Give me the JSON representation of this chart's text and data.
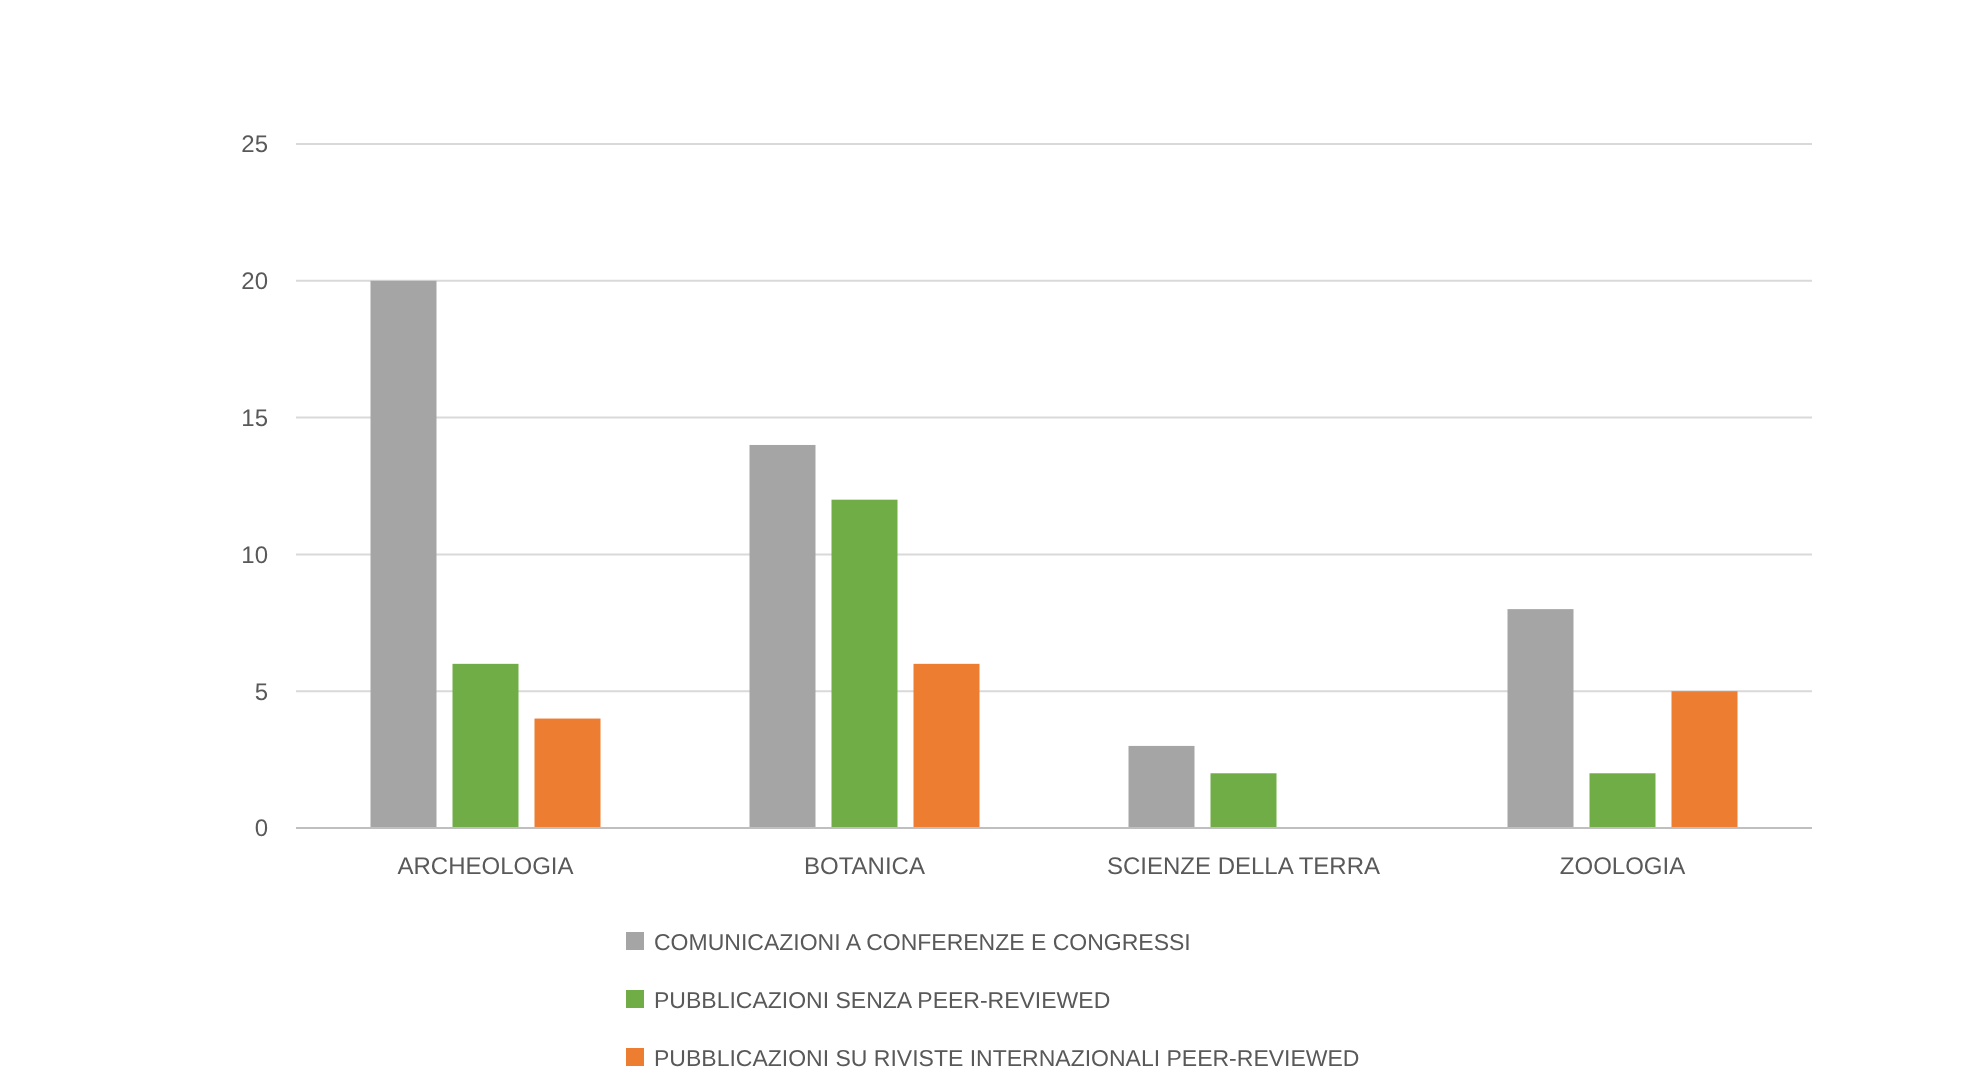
{
  "chart_data": {
    "type": "bar",
    "categories": [
      "ARCHEOLOGIA",
      "BOTANICA",
      "SCIENZE DELLA TERRA",
      "ZOOLOGIA"
    ],
    "series": [
      {
        "name": "COMUNICAZIONI A CONFERENZE E CONGRESSI",
        "color": "#a5a5a5",
        "values": [
          20,
          14,
          3,
          8
        ]
      },
      {
        "name": "PUBBLICAZIONI SENZA PEER-REVIEWED",
        "color": "#70ad47",
        "values": [
          6,
          12,
          2,
          2
        ]
      },
      {
        "name": "PUBBLICAZIONI SU RIVISTE INTERNAZIONALI PEER-REVIEWED",
        "color": "#ed7d31",
        "values": [
          4,
          6,
          0,
          5
        ]
      }
    ],
    "ylim": [
      0,
      25
    ],
    "yticks": [
      0,
      5,
      10,
      15,
      20,
      25
    ],
    "grid": "y",
    "legend": "bottom"
  }
}
